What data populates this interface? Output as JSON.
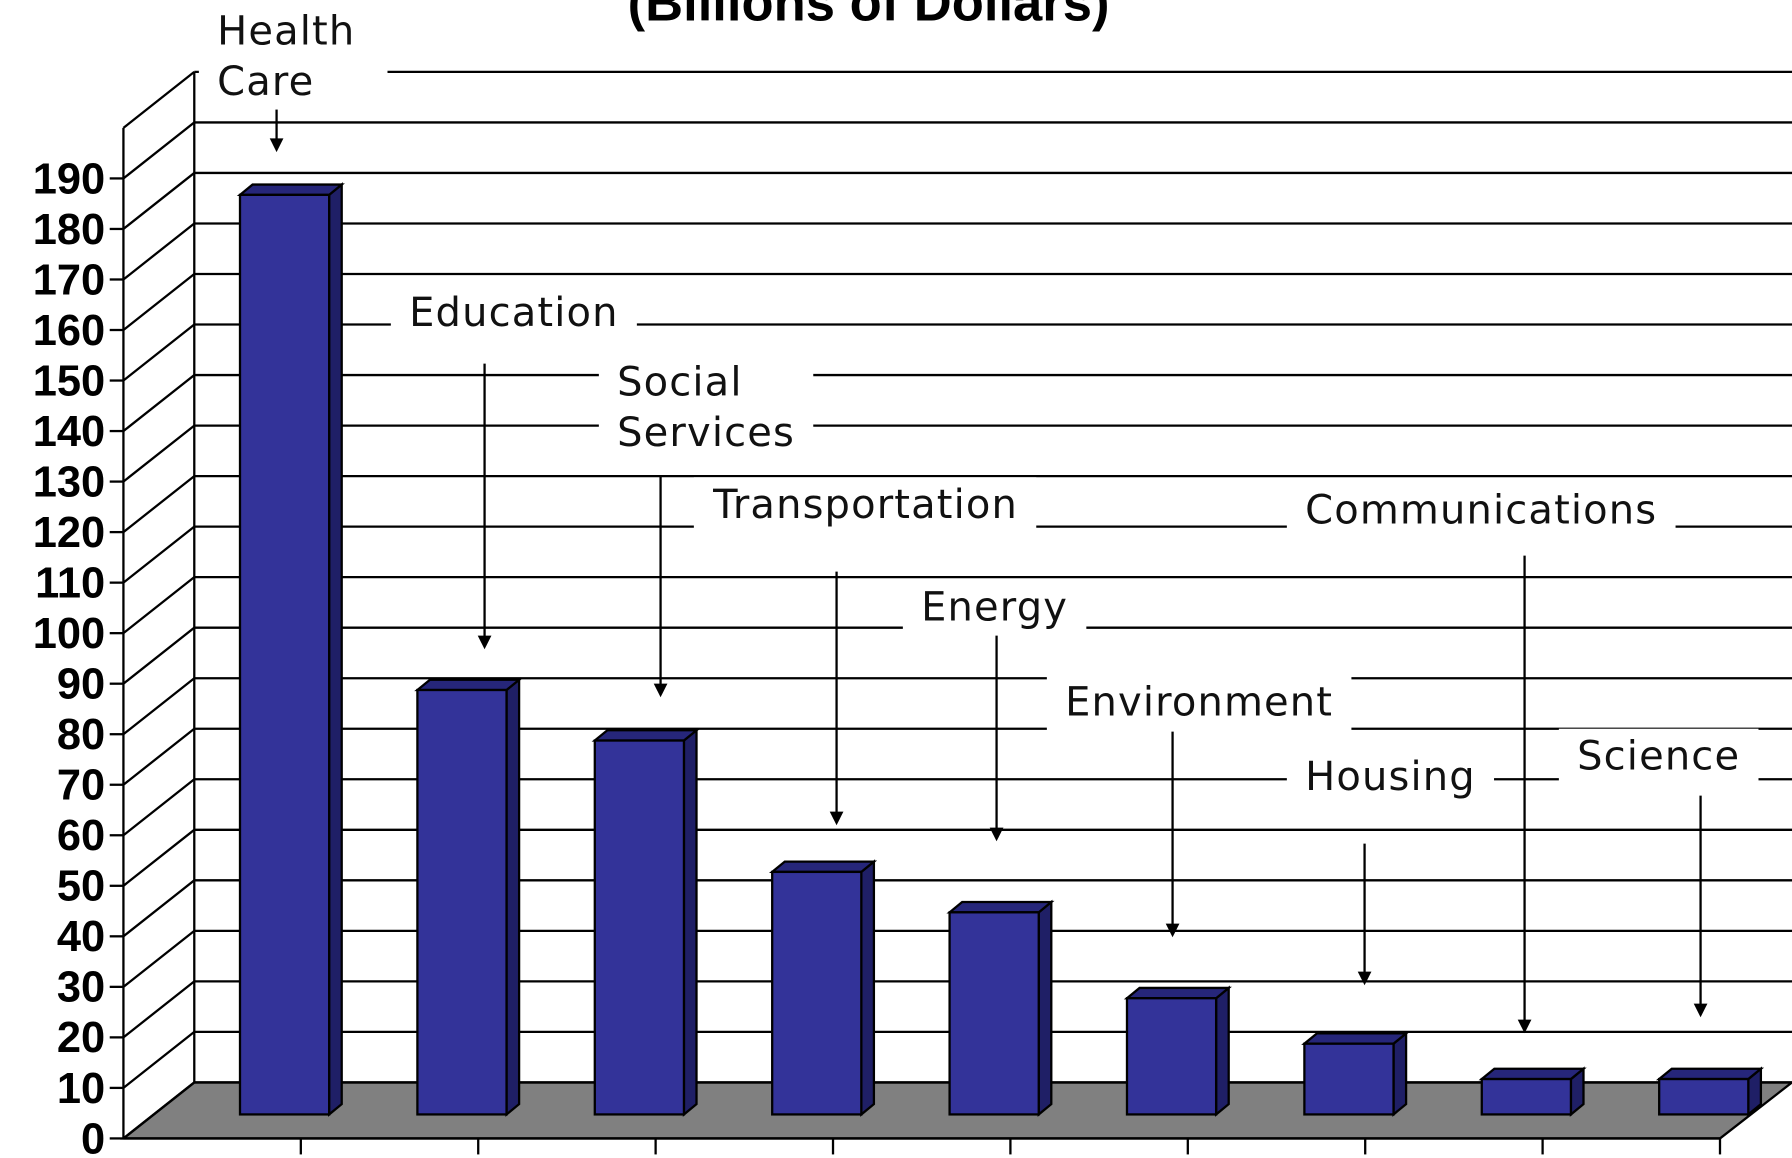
{
  "chart_data": {
    "type": "bar3d",
    "title": "(Billions of Dollars)",
    "categories": [
      "Health Care",
      "Education",
      "Social Services",
      "Transportation",
      "Energy",
      "Environment",
      "Housing",
      "Communications",
      "Science"
    ],
    "values": [
      182,
      84,
      74,
      48,
      40,
      23,
      14,
      7,
      7
    ],
    "color": "#333399",
    "floor_color": "#808080",
    "ylim": [
      0,
      200
    ],
    "yticks": [
      0,
      10,
      20,
      30,
      40,
      50,
      60,
      70,
      80,
      90,
      100,
      110,
      120,
      130,
      140,
      150,
      160,
      170,
      180,
      190
    ],
    "grid": true
  }
}
